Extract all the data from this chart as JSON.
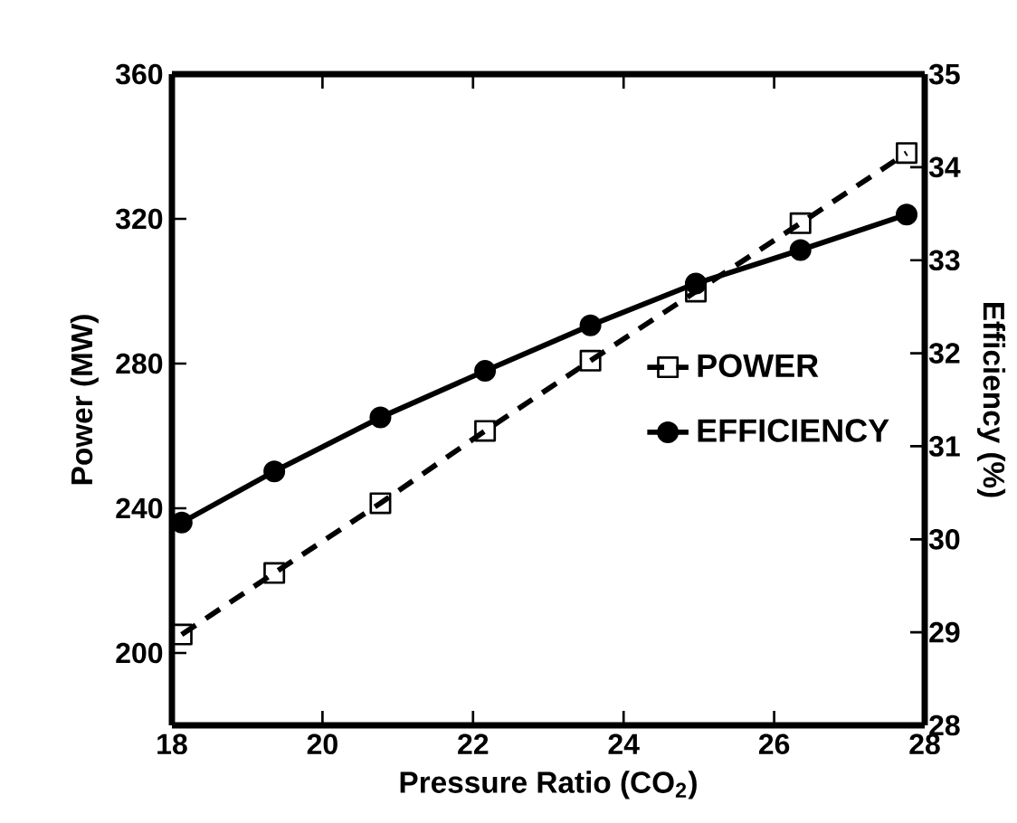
{
  "chart_data": {
    "type": "line",
    "xlabel": "Pressure Ratio (CO$_{2}$)",
    "ylabel": "Power (MW)",
    "y2label": "Efficiency (%)",
    "xlim": [
      18,
      28
    ],
    "xticks": [
      18,
      20,
      22,
      24,
      26,
      28
    ],
    "ylim": [
      180,
      360
    ],
    "yticks": [
      200,
      240,
      280,
      320,
      360
    ],
    "y2lim": [
      28,
      35
    ],
    "y2ticks": [
      28,
      29,
      30,
      31,
      32,
      33,
      34,
      35
    ],
    "x": [
      18.13,
      19.36,
      20.77,
      22.16,
      23.56,
      24.96,
      26.35,
      27.76
    ],
    "series": [
      {
        "name": "POWER",
        "color": "#000000",
        "marker": "square",
        "line_style": "dashed",
        "values": [
          205.1,
          222.1,
          241.4,
          261.4,
          280.8,
          299.9,
          318.8,
          338.2
        ]
      },
      {
        "name": "EFFICIENCY",
        "color": "#000000",
        "marker": "circle",
        "line_style": "solid",
        "axis": "y2",
        "values": [
          30.18,
          30.73,
          31.31,
          31.81,
          32.3,
          32.75,
          33.11,
          33.49
        ]
      }
    ],
    "legend": "right",
    "grid": false
  }
}
